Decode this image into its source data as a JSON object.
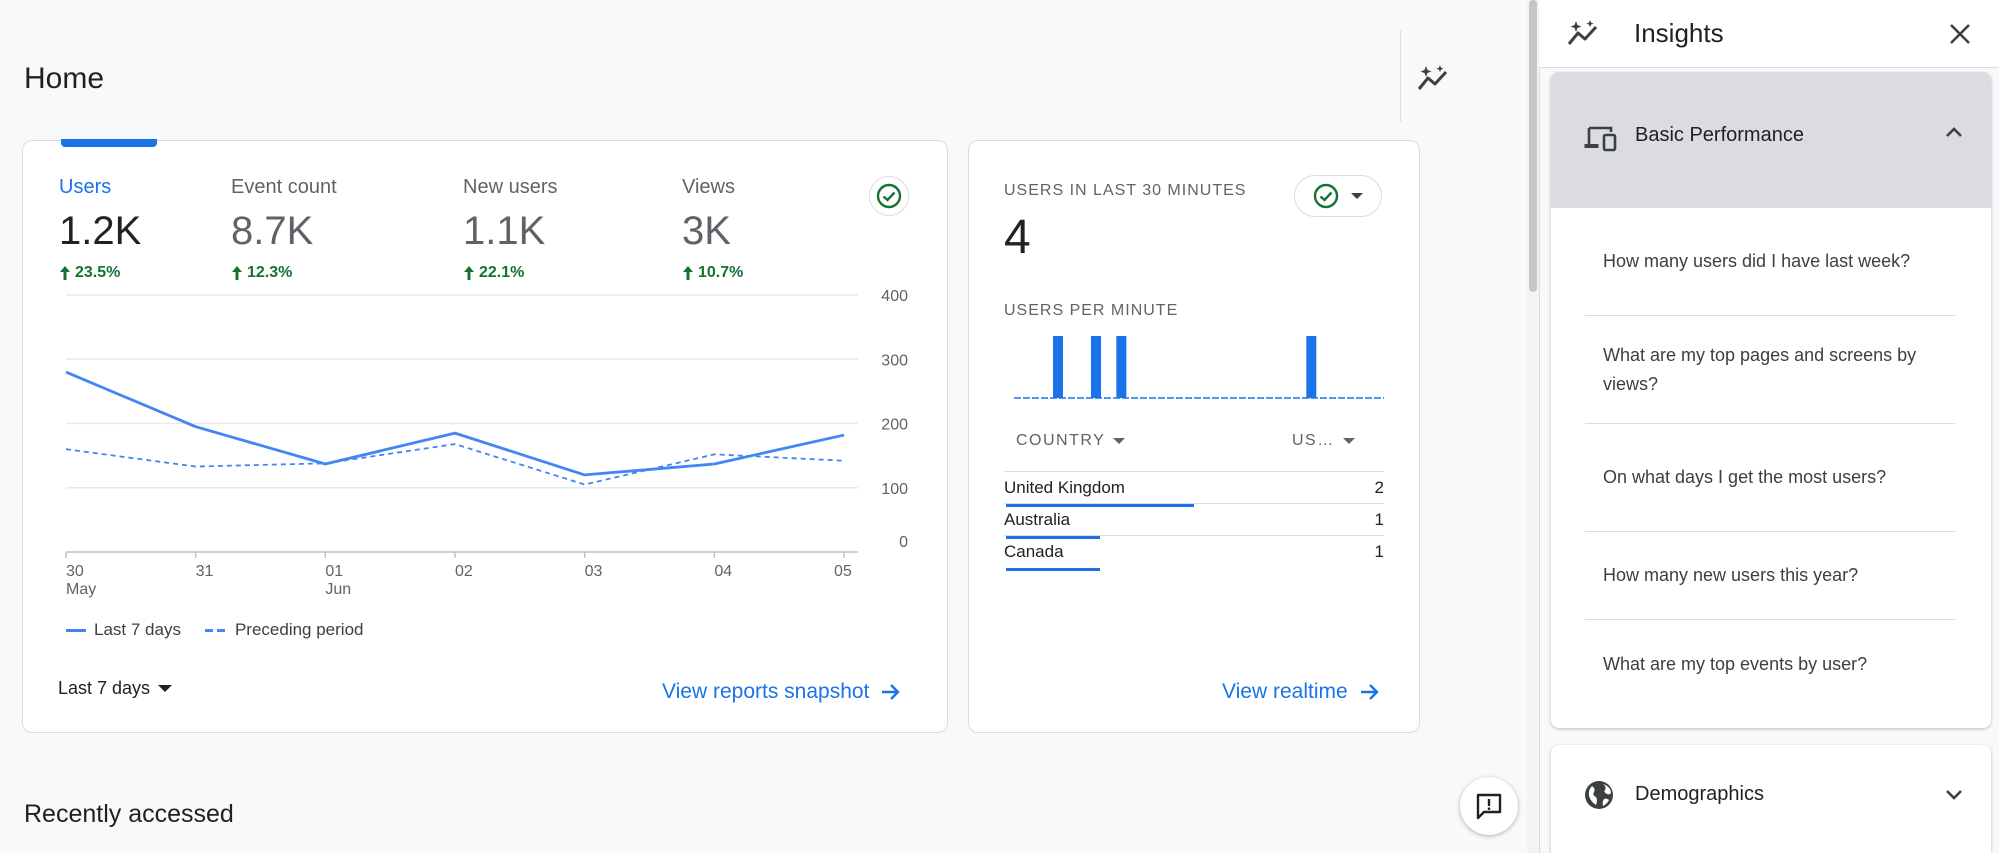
{
  "page": {
    "title": "Home"
  },
  "summary_card": {
    "metrics": [
      {
        "label": "Users",
        "value": "1.2K",
        "change": "23.5%"
      },
      {
        "label": "Event count",
        "value": "8.7K",
        "change": "12.3%"
      },
      {
        "label": "New users",
        "value": "1.1K",
        "change": "22.1%"
      },
      {
        "label": "Views",
        "value": "3K",
        "change": "10.7%"
      }
    ],
    "date_range": "Last 7 days",
    "link": "View reports snapshot"
  },
  "chart_data": {
    "type": "line",
    "x_ticks": [
      {
        "day": "30",
        "month": "May"
      },
      {
        "day": "31",
        "month": ""
      },
      {
        "day": "01",
        "month": "Jun"
      },
      {
        "day": "02",
        "month": ""
      },
      {
        "day": "03",
        "month": ""
      },
      {
        "day": "04",
        "month": ""
      },
      {
        "day": "05",
        "month": ""
      }
    ],
    "y_ticks": [
      "400",
      "300",
      "200",
      "100",
      "0"
    ],
    "ylim": [
      0,
      400
    ],
    "series": [
      {
        "name": "Last 7 days",
        "values": [
          280,
          195,
          137,
          185,
          120,
          137,
          182
        ],
        "style": "solid"
      },
      {
        "name": "Preceding period",
        "values": [
          160,
          133,
          138,
          168,
          105,
          152,
          142
        ],
        "style": "dashed"
      }
    ],
    "grid": true,
    "legend_position": "bottom-left",
    "color": "#4285f4"
  },
  "realtime_card": {
    "title": "USERS IN LAST 30 MINUTES",
    "count": "4",
    "per_minute_label": "USERS PER MINUTE",
    "per_minute_values": [
      0,
      0,
      0,
      1,
      0,
      0,
      1,
      0,
      1,
      0,
      0,
      0,
      0,
      0,
      0,
      0,
      0,
      0,
      0,
      0,
      0,
      0,
      0,
      1,
      0,
      0,
      0,
      0,
      0,
      0
    ],
    "columns": [
      "COUNTRY",
      "US…"
    ],
    "rows": [
      {
        "country": "United Kingdom",
        "users": "2",
        "share": 1.0
      },
      {
        "country": "Australia",
        "users": "1",
        "share": 0.5
      },
      {
        "country": "Canada",
        "users": "1",
        "share": 0.5
      }
    ],
    "link": "View realtime"
  },
  "recently_accessed": {
    "title": "Recently accessed"
  },
  "insights_panel": {
    "title": "Insights",
    "sections": [
      {
        "title": "Basic Performance",
        "expanded": true,
        "questions": [
          "How many users did I have last week?",
          "What are my top pages and screens by views?",
          "On what days I get the most users?",
          "How many new users this year?",
          "What are my top events by user?"
        ]
      },
      {
        "title": "Demographics",
        "expanded": false
      }
    ]
  },
  "colors": {
    "accent": "#1a73e8",
    "positive": "#137333",
    "line": "#4285f4"
  }
}
